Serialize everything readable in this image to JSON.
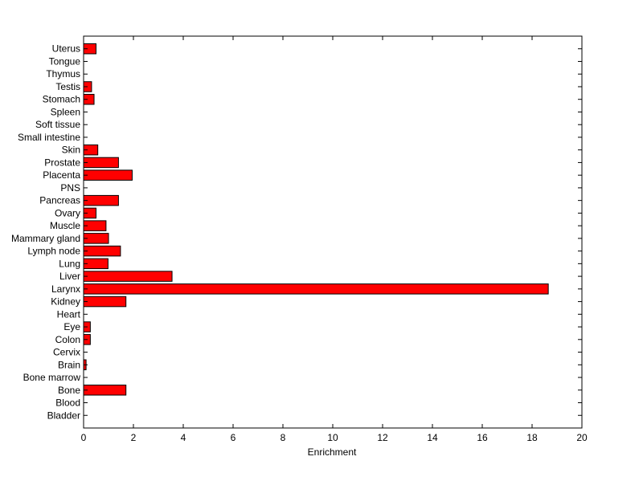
{
  "chart_data": {
    "type": "bar",
    "orientation": "horizontal",
    "title": "",
    "xlabel": "Enrichment",
    "ylabel": "",
    "xlim": [
      0,
      20
    ],
    "xticks": [
      0,
      2,
      4,
      6,
      8,
      10,
      12,
      14,
      16,
      18,
      20
    ],
    "grid": false,
    "bar_color": "#ff0000",
    "bar_edge_color": "#000000",
    "categories": [
      "Bladder",
      "Blood",
      "Bone",
      "Bone marrow",
      "Brain",
      "Cervix",
      "Colon",
      "Eye",
      "Heart",
      "Kidney",
      "Larynx",
      "Liver",
      "Lung",
      "Lymph node",
      "Mammary gland",
      "Muscle",
      "Ovary",
      "Pancreas",
      "PNS",
      "Placenta",
      "Prostate",
      "Skin",
      "Small intestine",
      "Soft tissue",
      "Spleen",
      "Stomach",
      "Testis",
      "Thymus",
      "Tongue",
      "Uterus"
    ],
    "values": [
      0,
      0,
      1.7,
      0,
      0.1,
      0,
      0.27,
      0.27,
      0,
      1.7,
      18.65,
      3.55,
      0.98,
      1.48,
      1.0,
      0.9,
      0.5,
      1.4,
      0,
      1.95,
      1.4,
      0.57,
      0,
      0,
      0,
      0.42,
      0.32,
      0,
      0,
      0.5
    ]
  }
}
